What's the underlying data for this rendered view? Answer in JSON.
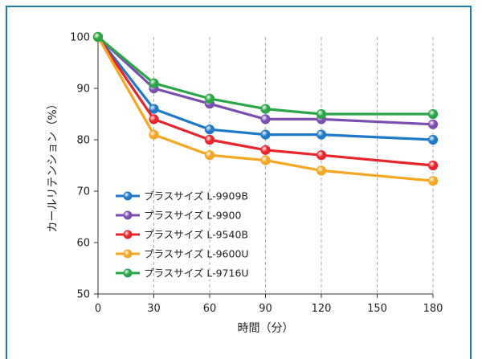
{
  "chart_data": {
    "type": "line",
    "title": "",
    "xlabel": "時間（分）",
    "ylabel": "カールリテンション（%）",
    "x": [
      0,
      30,
      60,
      90,
      120,
      180
    ],
    "xticks": [
      "0",
      "30",
      "60",
      "90",
      "120",
      "150",
      "180"
    ],
    "yticks": [
      "50",
      "60",
      "70",
      "80",
      "90",
      "100"
    ],
    "xlim": [
      0,
      180
    ],
    "ylim": [
      50,
      100
    ],
    "grid": "vertical dashed",
    "legend_position": "lower-left",
    "series": [
      {
        "name": "プラスサイズ L-9909B",
        "color": "#1f78c8",
        "values": [
          100,
          86,
          82,
          81,
          81,
          80
        ]
      },
      {
        "name": "プラスサイズ L-9900",
        "color": "#7b4fb0",
        "values": [
          100,
          90,
          87,
          84,
          84,
          83
        ]
      },
      {
        "name": "プラスサイズ L-9540B",
        "color": "#e8252b",
        "values": [
          100,
          84,
          80,
          78,
          77,
          75
        ]
      },
      {
        "name": "プラスサイズ L-9600U",
        "color": "#f5a623",
        "values": [
          100,
          81,
          77,
          76,
          74,
          72
        ]
      },
      {
        "name": "プラスサイズ L-9716U",
        "color": "#2aa548",
        "values": [
          100,
          91,
          88,
          86,
          85,
          85
        ]
      }
    ]
  }
}
